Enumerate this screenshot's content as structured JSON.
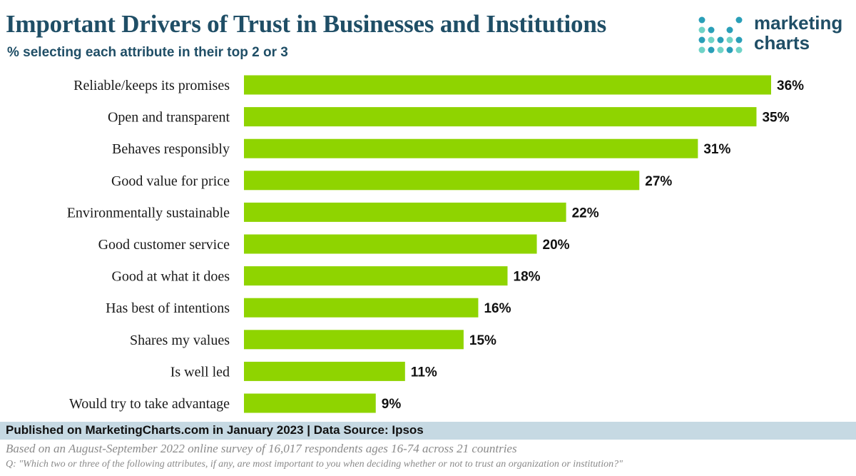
{
  "header": {
    "title": "Important Drivers of Trust in Businesses and Institutions",
    "subtitle": "% selecting each attribute in their top 2 or 3"
  },
  "logo": {
    "line1": "marketing",
    "line2": "charts",
    "dot_colors": [
      "#2a9fb8",
      "#6fd3c7",
      "#2a9fb8"
    ]
  },
  "chart_data": {
    "type": "bar",
    "orientation": "horizontal",
    "title": "Important Drivers of Trust in Businesses and Institutions",
    "subtitle": "% selecting each attribute in their top 2 or 3",
    "categories": [
      "Reliable/keeps its promises",
      "Open and transparent",
      "Behaves responsibly",
      "Good value for price",
      "Environmentally sustainable",
      "Good customer service",
      "Good at what it does",
      "Has best of intentions",
      "Shares my values",
      "Is well led",
      "Would try to take advantage"
    ],
    "values": [
      36,
      35,
      31,
      27,
      22,
      20,
      18,
      16,
      15,
      11,
      9
    ],
    "value_labels": [
      "36%",
      "35%",
      "31%",
      "27%",
      "22%",
      "20%",
      "18%",
      "16%",
      "15%",
      "11%",
      "9%"
    ],
    "unit": "%",
    "xlim": [
      0,
      36
    ],
    "bar_color": "#8fd400",
    "grid": false,
    "legend": "none"
  },
  "footer": {
    "published": "Published on MarketingCharts.com in January 2023 | Data Source: Ipsos",
    "note1": "Based on an August-September 2022 online survey of 16,017 respondents ages 16-74 across 21 countries",
    "note2": "Q: \"Which two or three of the following attributes, if any, are most important to you when deciding whether or not to trust an organization or institution?\""
  }
}
